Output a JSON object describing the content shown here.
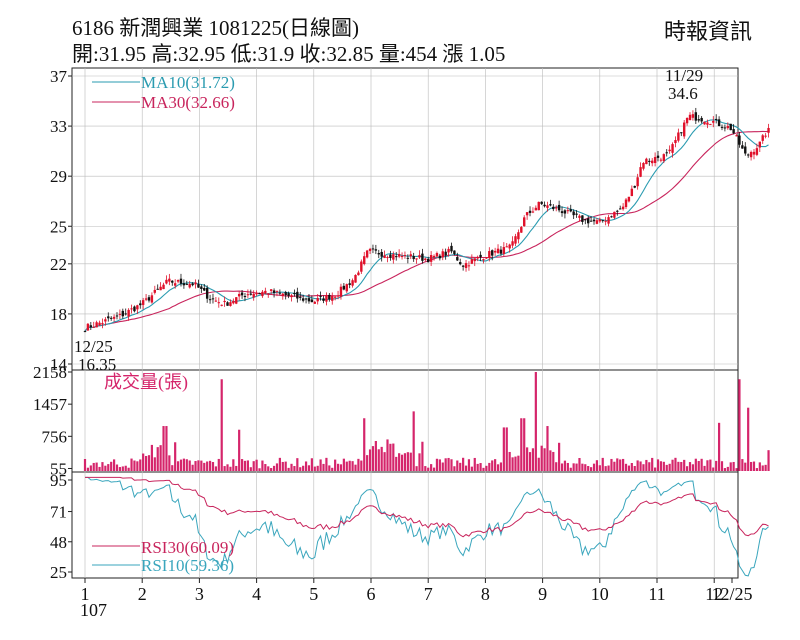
{
  "header": {
    "title": "6186  新潤興業 1081225(日線圖)",
    "stats": "開:31.95 高:32.95 低:31.9 收:32.85 量:454 漲 1.05",
    "brand": "時報資訊"
  },
  "colors": {
    "up": "#e0102a",
    "down": "#111111",
    "ma10": "#2a9bb0",
    "ma30": "#c8245c",
    "volume": "#d5256b",
    "rsi10": "#3aa6bd",
    "rsi30": "#c8245c"
  },
  "chart_data": [
    {
      "type": "candlestick",
      "panel": "price",
      "ylim": [
        14,
        37
      ],
      "yticks": [
        "37",
        "33",
        "29",
        "25",
        "22",
        "18",
        "14"
      ],
      "ytick_values": [
        37,
        33,
        29,
        25,
        22,
        18,
        14
      ],
      "series": [
        {
          "name": "MA10(31.72)",
          "last_value": 31.72
        },
        {
          "name": "MA30(32.66)",
          "last_value": 32.66
        }
      ],
      "annotations": [
        {
          "date": "12/25",
          "value": "16.35",
          "kind": "low"
        },
        {
          "date": "11/29",
          "value": "34.6",
          "kind": "high"
        }
      ],
      "anchor_points": [
        {
          "month": 1.0,
          "close": 16.9
        },
        {
          "month": 1.6,
          "close": 17.8
        },
        {
          "month": 2.0,
          "close": 18.8
        },
        {
          "month": 2.45,
          "close": 20.6
        },
        {
          "month": 2.9,
          "close": 20.4
        },
        {
          "month": 3.2,
          "close": 19.2
        },
        {
          "month": 3.45,
          "close": 18.8
        },
        {
          "month": 3.8,
          "close": 19.6
        },
        {
          "month": 4.2,
          "close": 19.8
        },
        {
          "month": 4.6,
          "close": 19.4
        },
        {
          "month": 5.0,
          "close": 19.0
        },
        {
          "month": 5.4,
          "close": 19.6
        },
        {
          "month": 5.7,
          "close": 20.8
        },
        {
          "month": 5.95,
          "close": 23.0
        },
        {
          "month": 6.4,
          "close": 22.7
        },
        {
          "month": 7.0,
          "close": 22.4
        },
        {
          "month": 7.4,
          "close": 23.0
        },
        {
          "month": 7.6,
          "close": 21.9
        },
        {
          "month": 8.0,
          "close": 22.7
        },
        {
          "month": 8.45,
          "close": 23.3
        },
        {
          "month": 8.7,
          "close": 25.8
        },
        {
          "month": 8.95,
          "close": 26.8
        },
        {
          "month": 9.3,
          "close": 26.3
        },
        {
          "month": 9.7,
          "close": 25.5
        },
        {
          "month": 10.0,
          "close": 25.3
        },
        {
          "month": 10.4,
          "close": 26.5
        },
        {
          "month": 10.6,
          "close": 28.2
        },
        {
          "month": 10.75,
          "close": 30.2
        },
        {
          "month": 11.2,
          "close": 30.7
        },
        {
          "month": 11.55,
          "close": 33.8
        },
        {
          "month": 11.9,
          "close": 33.5
        },
        {
          "month": 12.3,
          "close": 32.8
        },
        {
          "month": 12.55,
          "close": 30.6
        },
        {
          "month": 12.8,
          "close": 31.6
        },
        {
          "month": 12.95,
          "close": 32.85
        }
      ]
    },
    {
      "type": "bar",
      "panel": "volume",
      "title": "成交量(張)",
      "ylim": [
        0,
        2158
      ],
      "yticks": [
        "2158",
        "1457",
        "756",
        "55"
      ],
      "ytick_values": [
        2158,
        1457,
        756,
        55
      ],
      "spikes": [
        {
          "month": 2.4,
          "value": 980
        },
        {
          "month": 3.4,
          "value": 2000
        },
        {
          "month": 3.7,
          "value": 900
        },
        {
          "month": 5.9,
          "value": 1150
        },
        {
          "month": 6.75,
          "value": 1300
        },
        {
          "month": 8.35,
          "value": 950
        },
        {
          "month": 8.65,
          "value": 1150
        },
        {
          "month": 8.9,
          "value": 2158
        },
        {
          "month": 9.1,
          "value": 980
        },
        {
          "month": 12.1,
          "value": 1050
        },
        {
          "month": 12.45,
          "value": 2000
        },
        {
          "month": 12.6,
          "value": 1380
        }
      ],
      "last_value": 454
    },
    {
      "type": "line",
      "panel": "rsi",
      "ylim": [
        25,
        95
      ],
      "yticks": [
        "95",
        "71",
        "48",
        "25"
      ],
      "ytick_values": [
        95,
        71,
        48,
        25
      ],
      "series": [
        {
          "name": "RSI30(60.09)",
          "last_value": 60.09
        },
        {
          "name": "RSI10(59.36)",
          "last_value": 59.36
        }
      ]
    }
  ],
  "x_axis": {
    "labels": [
      "1",
      "2",
      "3",
      "4",
      "5",
      "6",
      "7",
      "8",
      "9",
      "10",
      "11",
      "12",
      "12/25"
    ],
    "year_label": "107"
  }
}
